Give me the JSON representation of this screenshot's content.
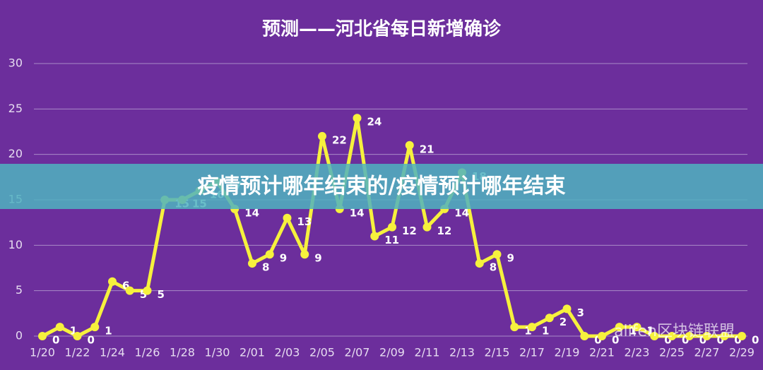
{
  "chart_data": {
    "type": "line",
    "title": "预测——河北省每日新增确诊",
    "categories": [
      "1/20",
      null,
      "1/22",
      null,
      "1/24",
      null,
      "1/26",
      null,
      "1/28",
      null,
      "1/30",
      null,
      "2/01",
      null,
      "2/03",
      null,
      "2/05",
      null,
      "2/07",
      null,
      "2/09",
      null,
      "2/11",
      null,
      "2/13",
      null,
      "2/15",
      null,
      "2/17",
      null,
      "2/19",
      null,
      "2/21",
      null,
      "2/23",
      null,
      "2/25",
      null,
      "2/27",
      null,
      "2/29"
    ],
    "values": [
      0,
      1,
      0,
      1,
      6,
      5,
      5,
      15,
      15,
      16,
      17,
      14,
      8,
      9,
      13,
      9,
      22,
      14,
      24,
      11,
      12,
      21,
      12,
      14,
      18,
      8,
      9,
      1,
      1,
      2,
      3,
      0,
      0,
      1,
      1,
      0,
      0,
      0,
      0,
      0,
      0
    ],
    "color": "#f6f13d",
    "ylim": [
      0,
      30
    ],
    "yticks": [
      0,
      5,
      10,
      15,
      20,
      25,
      30
    ],
    "grid": true
  },
  "banner": {
    "title": "疫情预计哪年结束的/疫情预计哪年结束"
  },
  "watermark": {
    "text": "alifen区块链联盟"
  }
}
